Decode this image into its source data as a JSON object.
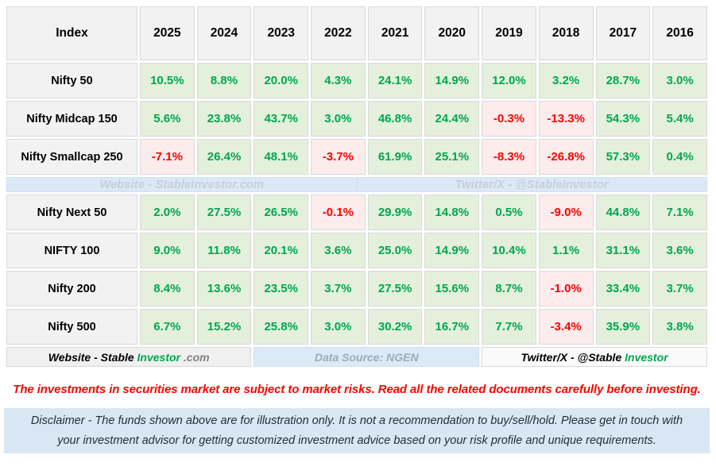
{
  "table": {
    "header": [
      "Index",
      "2025",
      "2024",
      "2023",
      "2022",
      "2021",
      "2020",
      "2019",
      "2018",
      "2017",
      "2016"
    ],
    "rows_top": [
      {
        "index": "Nifty 50",
        "values": [
          "10.5%",
          "8.8%",
          "20.0%",
          "4.3%",
          "24.1%",
          "14.9%",
          "12.0%",
          "3.2%",
          "28.7%",
          "3.0%"
        ]
      },
      {
        "index": "Nifty Midcap 150",
        "values": [
          "5.6%",
          "23.8%",
          "43.7%",
          "3.0%",
          "46.8%",
          "24.4%",
          "-0.3%",
          "-13.3%",
          "54.3%",
          "5.4%"
        ]
      },
      {
        "index": "Nifty Smallcap 250",
        "values": [
          "-7.1%",
          "26.4%",
          "48.1%",
          "-3.7%",
          "61.9%",
          "25.1%",
          "-8.3%",
          "-26.8%",
          "57.3%",
          "0.4%"
        ]
      }
    ],
    "rows_bottom": [
      {
        "index": "Nifty Next 50",
        "values": [
          "2.0%",
          "27.5%",
          "26.5%",
          "-0.1%",
          "29.9%",
          "14.8%",
          "0.5%",
          "-9.0%",
          "44.8%",
          "7.1%"
        ]
      },
      {
        "index": "NIFTY 100",
        "values": [
          "9.0%",
          "11.8%",
          "20.1%",
          "3.6%",
          "25.0%",
          "14.9%",
          "10.4%",
          "1.1%",
          "31.1%",
          "3.6%"
        ]
      },
      {
        "index": "Nifty 200",
        "values": [
          "8.4%",
          "13.6%",
          "23.5%",
          "3.7%",
          "27.5%",
          "15.6%",
          "8.7%",
          "-1.0%",
          "33.4%",
          "3.7%"
        ]
      },
      {
        "index": "Nifty 500",
        "values": [
          "6.7%",
          "15.2%",
          "25.8%",
          "3.0%",
          "30.2%",
          "16.7%",
          "7.7%",
          "-3.4%",
          "35.9%",
          "3.8%"
        ]
      }
    ],
    "watermark": {
      "left": "Website - StableInvestor.com",
      "right": "Twitter/X - @StableInvestor"
    },
    "footer": {
      "website_prefix": "Website - Stable ",
      "website_brand": "Investor",
      "website_suffix": " .com",
      "datasource": "Data Source: NGEN",
      "twitter_prefix": "Twitter/X - @Stable ",
      "twitter_brand": "Investor"
    }
  },
  "warning": "The investments in securities market are subject to market risks. Read all the related documents carefully before investing.",
  "disclaimer": "Disclaimer - The funds shown above are for illustration only. It is not a recommendation to buy/sell/hold. Please get in touch with your investment advisor for getting customized investment advice based on your risk profile and unique requirements.",
  "colors": {
    "positive_text": "#00a651",
    "positive_bg": "#e4f0dc",
    "negative_text": "#ff0000",
    "negative_bg": "#fdecec",
    "header_bg": "#f2f2f2",
    "watermark_bg": "#dbe8f5",
    "datasource_bg": "#dce9f6",
    "disclaimer_bg": "#d9e7f4",
    "warning_text": "#ff0000",
    "border": "#d9d9d9"
  },
  "chart_data": {
    "type": "table",
    "title": "Yearly returns of Nifty indices",
    "categories": [
      2025,
      2024,
      2023,
      2022,
      2021,
      2020,
      2019,
      2018,
      2017,
      2016
    ],
    "series": [
      {
        "name": "Nifty 50",
        "values": [
          10.5,
          8.8,
          20.0,
          4.3,
          24.1,
          14.9,
          12.0,
          3.2,
          28.7,
          3.0
        ]
      },
      {
        "name": "Nifty Midcap 150",
        "values": [
          5.6,
          23.8,
          43.7,
          3.0,
          46.8,
          24.4,
          -0.3,
          -13.3,
          54.3,
          5.4
        ]
      },
      {
        "name": "Nifty Smallcap 250",
        "values": [
          -7.1,
          26.4,
          48.1,
          -3.7,
          61.9,
          25.1,
          -8.3,
          -26.8,
          57.3,
          0.4
        ]
      },
      {
        "name": "Nifty Next 50",
        "values": [
          2.0,
          27.5,
          26.5,
          -0.1,
          29.9,
          14.8,
          0.5,
          -9.0,
          44.8,
          7.1
        ]
      },
      {
        "name": "NIFTY 100",
        "values": [
          9.0,
          11.8,
          20.1,
          3.6,
          25.0,
          14.9,
          10.4,
          1.1,
          31.1,
          3.6
        ]
      },
      {
        "name": "Nifty 200",
        "values": [
          8.4,
          13.6,
          23.5,
          3.7,
          27.5,
          15.6,
          8.7,
          -1.0,
          33.4,
          3.7
        ]
      },
      {
        "name": "Nifty 500",
        "values": [
          6.7,
          15.2,
          25.8,
          3.0,
          30.2,
          16.7,
          7.7,
          -3.4,
          35.9,
          3.8
        ]
      }
    ],
    "units": "percent",
    "legend_position": "none",
    "grid": true
  }
}
